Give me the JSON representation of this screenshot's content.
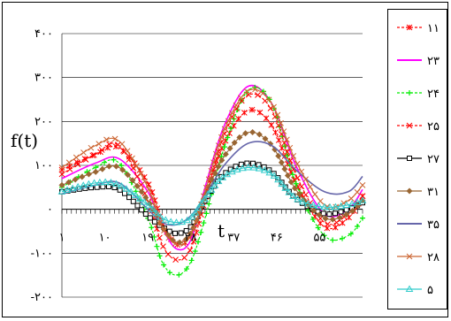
{
  "chart_data": {
    "type": "line",
    "ylabel": "f(t)",
    "xlabel": "t",
    "ylim": [
      -200,
      400
    ],
    "y_ticks": [
      {
        "value": 400,
        "label": "۴۰۰"
      },
      {
        "value": 300,
        "label": "۳۰۰"
      },
      {
        "value": 200,
        "label": "۲۰۰"
      },
      {
        "value": 100,
        "label": "۱۰۰"
      },
      {
        "value": 0,
        "label": "۰"
      },
      {
        "value": -100,
        "label": "-۱۰۰"
      },
      {
        "value": -200,
        "label": "-۲۰۰"
      }
    ],
    "x_range": [
      1,
      64
    ],
    "x_ticks": [
      {
        "value": 1,
        "label": "۱"
      },
      {
        "value": 10,
        "label": "۱۰"
      },
      {
        "value": 19,
        "label": "۱۹"
      },
      {
        "value": 28,
        "label": "۲۸"
      },
      {
        "value": 37,
        "label": "۳۷"
      },
      {
        "value": 46,
        "label": "۴۶"
      },
      {
        "value": 55,
        "label": "۵۵"
      }
    ],
    "grid": "horizontal",
    "legend_position": "right",
    "series": [
      {
        "name": "۱۱",
        "color": "#ff0000",
        "marker": "star",
        "dashed": true,
        "points": [
          [
            1,
            90
          ],
          [
            8,
            125
          ],
          [
            13,
            140
          ],
          [
            19,
            60
          ],
          [
            22,
            -30
          ],
          [
            25,
            -80
          ],
          [
            28,
            -60
          ],
          [
            31,
            30
          ],
          [
            35,
            150
          ],
          [
            40,
            225
          ],
          [
            45,
            190
          ],
          [
            50,
            60
          ],
          [
            56,
            -40
          ],
          [
            61,
            -20
          ],
          [
            64,
            30
          ]
        ]
      },
      {
        "name": "۲۳",
        "color": "#ff00ff",
        "marker": "line",
        "points": [
          [
            1,
            70
          ],
          [
            8,
            105
          ],
          [
            13,
            115
          ],
          [
            19,
            40
          ],
          [
            22,
            -40
          ],
          [
            25,
            -90
          ],
          [
            28,
            -70
          ],
          [
            31,
            50
          ],
          [
            35,
            190
          ],
          [
            40,
            280
          ],
          [
            45,
            240
          ],
          [
            50,
            100
          ],
          [
            56,
            -10
          ],
          [
            61,
            0
          ],
          [
            64,
            45
          ]
        ]
      },
      {
        "name": "۲۴",
        "color": "#00ee00",
        "marker": "plus",
        "dashed": true,
        "points": [
          [
            1,
            50
          ],
          [
            8,
            95
          ],
          [
            13,
            105
          ],
          [
            19,
            -20
          ],
          [
            22,
            -120
          ],
          [
            25,
            -150
          ],
          [
            28,
            -120
          ],
          [
            31,
            -20
          ],
          [
            35,
            140
          ],
          [
            40,
            270
          ],
          [
            45,
            240
          ],
          [
            50,
            60
          ],
          [
            56,
            -60
          ],
          [
            61,
            -60
          ],
          [
            64,
            -20
          ]
        ]
      },
      {
        "name": "۲۵",
        "color": "#ff0000",
        "marker": "x",
        "dashed": true,
        "points": [
          [
            1,
            80
          ],
          [
            8,
            125
          ],
          [
            13,
            145
          ],
          [
            19,
            20
          ],
          [
            22,
            -80
          ],
          [
            25,
            -115
          ],
          [
            28,
            -90
          ],
          [
            31,
            20
          ],
          [
            35,
            170
          ],
          [
            40,
            260
          ],
          [
            45,
            225
          ],
          [
            50,
            80
          ],
          [
            56,
            -30
          ],
          [
            61,
            -10
          ],
          [
            64,
            30
          ]
        ]
      },
      {
        "name": "۲۷",
        "color": "#000000",
        "marker": "square",
        "points": [
          [
            1,
            40
          ],
          [
            8,
            50
          ],
          [
            13,
            45
          ],
          [
            19,
            -15
          ],
          [
            22,
            -40
          ],
          [
            25,
            -55
          ],
          [
            28,
            -40
          ],
          [
            31,
            20
          ],
          [
            35,
            80
          ],
          [
            40,
            105
          ],
          [
            45,
            85
          ],
          [
            50,
            25
          ],
          [
            56,
            -10
          ],
          [
            61,
            0
          ],
          [
            64,
            15
          ]
        ]
      },
      {
        "name": "۳۱",
        "color": "#996633",
        "marker": "diamond",
        "points": [
          [
            1,
            55
          ],
          [
            8,
            85
          ],
          [
            13,
            95
          ],
          [
            19,
            20
          ],
          [
            22,
            -40
          ],
          [
            25,
            -75
          ],
          [
            28,
            -55
          ],
          [
            31,
            30
          ],
          [
            35,
            120
          ],
          [
            40,
            175
          ],
          [
            45,
            145
          ],
          [
            50,
            45
          ],
          [
            56,
            -20
          ],
          [
            61,
            -10
          ],
          [
            64,
            20
          ]
        ]
      },
      {
        "name": "۳۵",
        "color": "#6666aa",
        "marker": "line",
        "points": [
          [
            1,
            35
          ],
          [
            8,
            55
          ],
          [
            13,
            60
          ],
          [
            19,
            0
          ],
          [
            22,
            -30
          ],
          [
            25,
            -35
          ],
          [
            28,
            -15
          ],
          [
            31,
            30
          ],
          [
            35,
            100
          ],
          [
            40,
            150
          ],
          [
            45,
            145
          ],
          [
            50,
            90
          ],
          [
            56,
            40
          ],
          [
            61,
            40
          ],
          [
            64,
            75
          ]
        ]
      },
      {
        "name": "۲۸",
        "color": "#cc6633",
        "marker": "x",
        "points": [
          [
            1,
            95
          ],
          [
            8,
            145
          ],
          [
            13,
            155
          ],
          [
            19,
            50
          ],
          [
            22,
            -40
          ],
          [
            25,
            -80
          ],
          [
            28,
            -60
          ],
          [
            31,
            40
          ],
          [
            35,
            180
          ],
          [
            40,
            270
          ],
          [
            45,
            240
          ],
          [
            50,
            110
          ],
          [
            56,
            10
          ],
          [
            61,
            20
          ],
          [
            64,
            55
          ]
        ]
      },
      {
        "name": "۵",
        "color": "#33cccc",
        "marker": "triangle",
        "points": [
          [
            1,
            40
          ],
          [
            8,
            60
          ],
          [
            13,
            55
          ],
          [
            19,
            10
          ],
          [
            22,
            -20
          ],
          [
            25,
            -30
          ],
          [
            28,
            -20
          ],
          [
            31,
            25
          ],
          [
            35,
            75
          ],
          [
            40,
            95
          ],
          [
            45,
            80
          ],
          [
            50,
            25
          ],
          [
            56,
            5
          ],
          [
            61,
            10
          ],
          [
            64,
            20
          ]
        ]
      }
    ]
  }
}
